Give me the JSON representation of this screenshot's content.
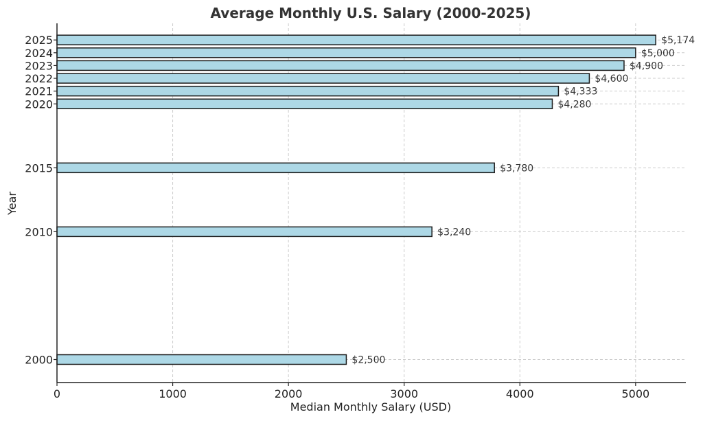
{
  "chart_data": {
    "type": "bar",
    "orientation": "horizontal",
    "title": "Average Monthly U.S. Salary (2000-2025)",
    "xlabel": "Median Monthly Salary (USD)",
    "ylabel": "Year",
    "xlim": [
      0,
      5434
    ],
    "ylim": [
      1998.2,
      2026.3
    ],
    "xticks": [
      0,
      1000,
      2000,
      3000,
      4000,
      5000
    ],
    "grid": true,
    "bar_color": "#add8e6",
    "edge_color": "#1a1a1a",
    "bars": [
      {
        "year": 2000,
        "value": 2500,
        "label": "$2,500"
      },
      {
        "year": 2010,
        "value": 3240,
        "label": "$3,240"
      },
      {
        "year": 2015,
        "value": 3780,
        "label": "$3,780"
      },
      {
        "year": 2020,
        "value": 4280,
        "label": "$4,280"
      },
      {
        "year": 2021,
        "value": 4333,
        "label": "$4,333"
      },
      {
        "year": 2022,
        "value": 4600,
        "label": "$4,600"
      },
      {
        "year": 2023,
        "value": 4900,
        "label": "$4,900"
      },
      {
        "year": 2024,
        "value": 5000,
        "label": "$5,000"
      },
      {
        "year": 2025,
        "value": 5174,
        "label": "$5,174"
      }
    ]
  }
}
